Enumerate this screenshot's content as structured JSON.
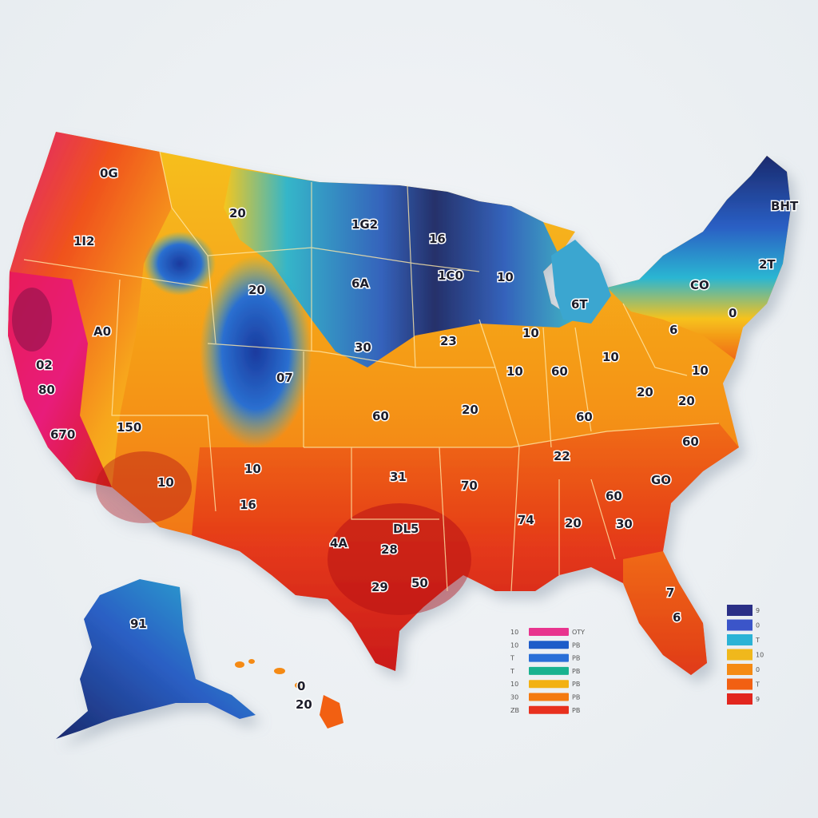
{
  "map": {
    "labels": [
      {
        "id": "wa",
        "text": "0G"
      },
      {
        "id": "or",
        "text": "1I2"
      },
      {
        "id": "mt",
        "text": "20"
      },
      {
        "id": "nd",
        "text": "1G2"
      },
      {
        "id": "mn",
        "text": "16"
      },
      {
        "id": "id",
        "text": "20"
      },
      {
        "id": "sd",
        "text": "6A"
      },
      {
        "id": "ia",
        "text": "1C0"
      },
      {
        "id": "wi",
        "text": "10"
      },
      {
        "id": "mi",
        "text": "6T"
      },
      {
        "id": "me",
        "text": "BHT"
      },
      {
        "id": "nh",
        "text": "2T"
      },
      {
        "id": "ny",
        "text": "CO"
      },
      {
        "id": "nv",
        "text": "A0"
      },
      {
        "id": "ne",
        "text": "30"
      },
      {
        "id": "ne2",
        "text": "23"
      },
      {
        "id": "pa",
        "text": "6"
      },
      {
        "id": "nj",
        "text": "0"
      },
      {
        "id": "ca1",
        "text": "02"
      },
      {
        "id": "ca2",
        "text": "80"
      },
      {
        "id": "ca3",
        "text": "670"
      },
      {
        "id": "ut",
        "text": "07"
      },
      {
        "id": "il",
        "text": "10"
      },
      {
        "id": "il2",
        "text": "10"
      },
      {
        "id": "in",
        "text": "60"
      },
      {
        "id": "oh",
        "text": "10"
      },
      {
        "id": "va",
        "text": "20"
      },
      {
        "id": "md",
        "text": "10"
      },
      {
        "id": "ks",
        "text": "60"
      },
      {
        "id": "mo",
        "text": "20"
      },
      {
        "id": "ky",
        "text": "60"
      },
      {
        "id": "wv",
        "text": "20"
      },
      {
        "id": "nv2",
        "text": "150"
      },
      {
        "id": "az",
        "text": "10"
      },
      {
        "id": "nm",
        "text": "10"
      },
      {
        "id": "nm2",
        "text": "16"
      },
      {
        "id": "ok",
        "text": "31"
      },
      {
        "id": "ar",
        "text": "70"
      },
      {
        "id": "tn",
        "text": "22"
      },
      {
        "id": "nc",
        "text": "60"
      },
      {
        "id": "sc",
        "text": "GO"
      },
      {
        "id": "tx1",
        "text": "DL5"
      },
      {
        "id": "tx2",
        "text": "4A"
      },
      {
        "id": "tx3",
        "text": "28"
      },
      {
        "id": "tx4",
        "text": "29"
      },
      {
        "id": "tx5",
        "text": "50"
      },
      {
        "id": "ms",
        "text": "74"
      },
      {
        "id": "al",
        "text": "20"
      },
      {
        "id": "ga",
        "text": "60"
      },
      {
        "id": "ga2",
        "text": "30"
      },
      {
        "id": "fl1",
        "text": "7"
      },
      {
        "id": "fl2",
        "text": "6"
      },
      {
        "id": "ak",
        "text": "91"
      },
      {
        "id": "hi1",
        "text": "0"
      },
      {
        "id": "hi2",
        "text": "20"
      }
    ]
  },
  "legend_left": {
    "rows": [
      {
        "left": "10",
        "right": "OTY",
        "color": "#e8348e"
      },
      {
        "left": "10",
        "right": "PB",
        "color": "#1d5cc9"
      },
      {
        "left": "T",
        "right": "PB",
        "color": "#2a6fd8"
      },
      {
        "left": "T",
        "right": "PB",
        "color": "#19b28f"
      },
      {
        "left": "10",
        "right": "PB",
        "color": "#f3b112"
      },
      {
        "left": "30",
        "right": "PB",
        "color": "#f47a11"
      },
      {
        "left": "ZB",
        "right": "PB",
        "color": "#e8311e"
      }
    ]
  },
  "legend_right": {
    "rows": [
      {
        "right": "9",
        "color": "#2a2f86"
      },
      {
        "right": "0",
        "color": "#3b55c9"
      },
      {
        "right": "T",
        "color": "#2bb3d6"
      },
      {
        "right": "10",
        "color": "#f0b81c"
      },
      {
        "right": "0",
        "color": "#f58a14"
      },
      {
        "right": "T",
        "color": "#f26012"
      },
      {
        "right": "9",
        "color": "#e2261e"
      }
    ]
  },
  "colors": {
    "hot_magenta": "#e8217a",
    "hot_red": "#d8231a",
    "orange": "#f26a14",
    "yellow": "#f6c21c",
    "cyan": "#2ab6d2",
    "blue": "#2a5fc4",
    "navy": "#1a2a6e"
  }
}
